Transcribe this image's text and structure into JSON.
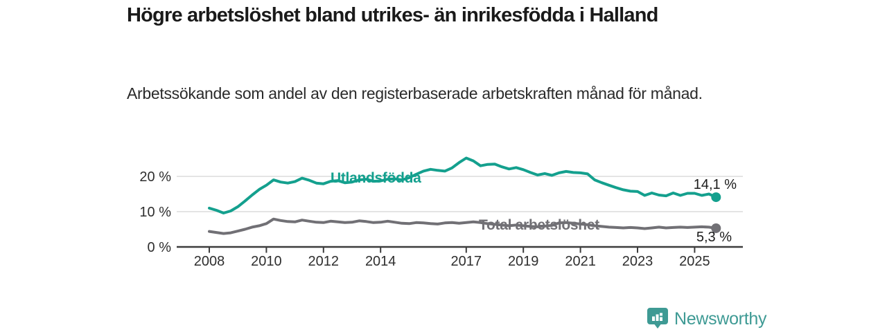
{
  "header": {
    "title": "Högre arbetslöshet bland utrikes- än inrikesfödda i Halland",
    "subtitle": "Arbetssökande som andel av den registerbaserade arbetskraften månad för månad."
  },
  "footer": {
    "brand": "Newsworthy",
    "logo_icon": "bar-chart-badge-icon",
    "brand_color": "#3e9a94"
  },
  "chart_data": {
    "type": "line",
    "title": "",
    "xlabel": "",
    "ylabel": "",
    "grid": true,
    "x_axis": {
      "ticks": [
        2008,
        2010,
        2012,
        2014,
        2017,
        2019,
        2021,
        2023,
        2025
      ],
      "range": [
        2006.9,
        2026.7
      ]
    },
    "y_axis": {
      "ticks": [
        0,
        10,
        20
      ],
      "tick_suffix": " %",
      "range": [
        0,
        27.5
      ]
    },
    "colors": {
      "grid": "#dcdcdc",
      "axis": "#3c3c3c",
      "tick_label": "#2e2e2e",
      "end_label": "#1a1a1a"
    },
    "x": [
      2008,
      2008.25,
      2008.5,
      2008.75,
      2009,
      2009.25,
      2009.5,
      2009.75,
      2010,
      2010.25,
      2010.5,
      2010.75,
      2011,
      2011.25,
      2011.5,
      2011.75,
      2012,
      2012.25,
      2012.5,
      2012.75,
      2013,
      2013.25,
      2013.5,
      2013.75,
      2014,
      2014.25,
      2014.5,
      2014.75,
      2015,
      2015.25,
      2015.5,
      2015.75,
      2016,
      2016.25,
      2016.5,
      2016.75,
      2017,
      2017.25,
      2017.5,
      2017.75,
      2018,
      2018.25,
      2018.5,
      2018.75,
      2019,
      2019.25,
      2019.5,
      2019.75,
      2020,
      2020.25,
      2020.5,
      2020.75,
      2021,
      2021.25,
      2021.5,
      2021.75,
      2022,
      2022.25,
      2022.5,
      2022.75,
      2023,
      2023.25,
      2023.5,
      2023.75,
      2024,
      2024.25,
      2024.5,
      2024.75,
      2025,
      2025.25,
      2025.5,
      2025.75
    ],
    "series": [
      {
        "name": "Utlandsfödda",
        "color": "#14a08e",
        "end_value": 14.1,
        "end_label": "14,1 %",
        "values": [
          11.0,
          10.4,
          9.6,
          10.2,
          11.4,
          13.0,
          14.7,
          16.3,
          17.5,
          19.0,
          18.4,
          18.1,
          18.5,
          19.5,
          18.9,
          18.1,
          17.9,
          18.6,
          18.8,
          18.2,
          18.4,
          19.0,
          19.2,
          18.6,
          18.7,
          19.2,
          19.3,
          19.0,
          19.6,
          20.6,
          21.5,
          22.0,
          21.7,
          21.5,
          22.4,
          23.9,
          25.2,
          24.4,
          23.0,
          23.4,
          23.5,
          22.7,
          22.1,
          22.5,
          21.9,
          21.1,
          20.4,
          20.8,
          20.3,
          21.0,
          21.4,
          21.1,
          21.0,
          20.7,
          19.0,
          18.2,
          17.5,
          16.8,
          16.2,
          15.8,
          15.7,
          14.6,
          15.3,
          14.7,
          14.5,
          15.3,
          14.6,
          15.2,
          15.2,
          14.6,
          15.0,
          14.1
        ]
      },
      {
        "name": "Total arbetslöshet",
        "color": "#717075",
        "end_value": 5.3,
        "end_label": "5,3 %",
        "values": [
          4.4,
          4.1,
          3.8,
          4.0,
          4.5,
          5.0,
          5.6,
          6.0,
          6.6,
          7.9,
          7.5,
          7.2,
          7.1,
          7.6,
          7.3,
          7.0,
          6.9,
          7.3,
          7.1,
          6.9,
          7.0,
          7.4,
          7.2,
          6.9,
          7.0,
          7.3,
          7.0,
          6.7,
          6.6,
          6.9,
          6.8,
          6.6,
          6.5,
          6.8,
          6.9,
          6.7,
          6.9,
          7.1,
          6.9,
          6.6,
          6.4,
          6.2,
          6.0,
          6.2,
          6.0,
          5.8,
          5.7,
          5.9,
          6.1,
          6.8,
          6.9,
          6.7,
          6.5,
          6.3,
          6.0,
          5.8,
          5.6,
          5.5,
          5.4,
          5.5,
          5.4,
          5.2,
          5.4,
          5.6,
          5.4,
          5.5,
          5.6,
          5.5,
          5.6,
          5.7,
          5.6,
          5.3
        ]
      }
    ]
  }
}
